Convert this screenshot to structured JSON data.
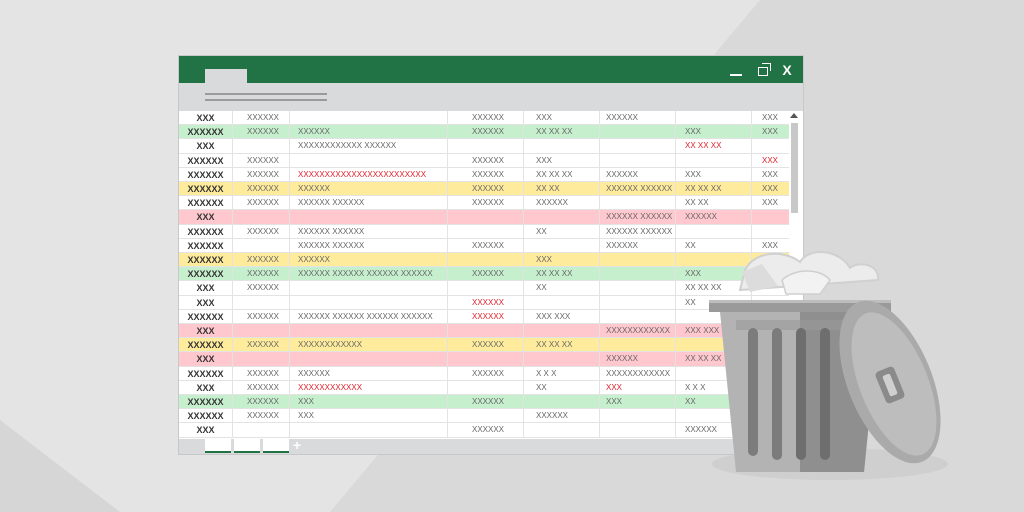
{
  "window": {
    "controls": {
      "minimize": "",
      "restore": "",
      "close": "X"
    }
  },
  "grid": {
    "rows": [
      {
        "color": "white",
        "cells": [
          "XXX",
          "XXXXXX",
          "",
          "XXXXXX",
          "XXX",
          "XXXXXX",
          "",
          "XXX"
        ],
        "red": []
      },
      {
        "color": "green",
        "cells": [
          "XXXXXX",
          "XXXXXX",
          "XXXXXX",
          "XXXXXX",
          "XX XX XX",
          "",
          "XXX",
          "XXX"
        ],
        "red": []
      },
      {
        "color": "white",
        "cells": [
          "XXX",
          "",
          "XXXXXXXXXXXX XXXXXX",
          "",
          "",
          "",
          "XX XX XX",
          ""
        ],
        "red": [
          6
        ]
      },
      {
        "color": "white",
        "cells": [
          "XXXXXX",
          "XXXXXX",
          "",
          "XXXXXX",
          "XXX",
          "",
          "",
          "XXX"
        ],
        "red": [
          7
        ]
      },
      {
        "color": "white",
        "cells": [
          "XXXXXX",
          "XXXXXX",
          "XXXXXXXXXXXXXXXXXXXXXXXX",
          "XXXXXX",
          "XX XX XX",
          "XXXXXX",
          "XXX",
          "XXX"
        ],
        "red": [
          2
        ]
      },
      {
        "color": "yellow",
        "cells": [
          "XXXXXX",
          "XXXXXX",
          "XXXXXX",
          "XXXXXX",
          "XX XX",
          "XXXXXX XXXXXX",
          "XX XX XX",
          "XXX"
        ],
        "red": []
      },
      {
        "color": "white",
        "cells": [
          "XXXXXX",
          "XXXXXX",
          "XXXXXX XXXXXX",
          "XXXXXX",
          "XXXXXX",
          "",
          "XX XX",
          "XXX"
        ],
        "red": []
      },
      {
        "color": "pink",
        "cells": [
          "XXX",
          "",
          "",
          "",
          "",
          "XXXXXX XXXXXX",
          "XXXXXX",
          ""
        ],
        "red": []
      },
      {
        "color": "white",
        "cells": [
          "XXXXXX",
          "XXXXXX",
          "XXXXXX XXXXXX",
          "",
          "XX",
          "XXXXXX XXXXXX",
          "",
          ""
        ],
        "red": []
      },
      {
        "color": "white",
        "cells": [
          "XXXXXX",
          "",
          "XXXXXX XXXXXX",
          "XXXXXX",
          "",
          "XXXXXX",
          "XX",
          "XXX"
        ],
        "red": []
      },
      {
        "color": "yellow",
        "cells": [
          "XXXXXX",
          "XXXXXX",
          "XXXXXX",
          "",
          "XXX",
          "",
          "",
          "XXX"
        ],
        "red": []
      },
      {
        "color": "green",
        "cells": [
          "XXXXXX",
          "XXXXXX",
          "XXXXXX XXXXXX XXXXXX XXXXXX",
          "XXXXXX",
          "XX XX XX",
          "",
          "XXX",
          "XX"
        ],
        "red": []
      },
      {
        "color": "white",
        "cells": [
          "XXX",
          "XXXXXX",
          "",
          "",
          "XX",
          "",
          "XX XX XX",
          ""
        ],
        "red": []
      },
      {
        "color": "white",
        "cells": [
          "XXX",
          "",
          "",
          "XXXXXX",
          "",
          "",
          "XX",
          ""
        ],
        "red": [
          3
        ]
      },
      {
        "color": "white",
        "cells": [
          "XXXXXX",
          "XXXXXX",
          "XXXXXX XXXXXX XXXXXX XXXXXX",
          "XXXXXX",
          "XXX XXX",
          "",
          "",
          ""
        ],
        "red": [
          3
        ]
      },
      {
        "color": "pink",
        "cells": [
          "XXX",
          "",
          "",
          "",
          "",
          "XXXXXXXXXXXX",
          "XXX XXX",
          ""
        ],
        "red": []
      },
      {
        "color": "yellow",
        "cells": [
          "XXXXXX",
          "XXXXXX",
          "XXXXXXXXXXXX",
          "XXXXXX",
          "XX XX XX",
          "",
          "",
          ""
        ],
        "red": []
      },
      {
        "color": "pink",
        "cells": [
          "XXX",
          "",
          "",
          "",
          "",
          "XXXXXX",
          "XX XX XX",
          ""
        ],
        "red": []
      },
      {
        "color": "white",
        "cells": [
          "XXXXXX",
          "XXXXXX",
          "XXXXXX",
          "XXXXXX",
          "X X X",
          "XXXXXXXXXXXX",
          "",
          ""
        ],
        "red": []
      },
      {
        "color": "white",
        "cells": [
          "XXX",
          "XXXXXX",
          "XXXXXXXXXXXX",
          "",
          "XX",
          "XXX",
          "X X X",
          ""
        ],
        "red": [
          2,
          5
        ]
      },
      {
        "color": "green",
        "cells": [
          "XXXXXX",
          "XXXXXX",
          "XXX",
          "XXXXXX",
          "",
          "XXX",
          "XX",
          ""
        ],
        "red": []
      },
      {
        "color": "white",
        "cells": [
          "XXXXXX",
          "XXXXXX",
          "XXX",
          "",
          "XXXXXX",
          "",
          "",
          ""
        ],
        "red": []
      },
      {
        "color": "white",
        "cells": [
          "XXX",
          "",
          "",
          "XXXXXX",
          "",
          "",
          "XXXXXX",
          ""
        ],
        "red": []
      }
    ]
  },
  "sheetbar": {
    "add_label": "+"
  },
  "colors": {
    "accent": "#217346",
    "green_row": "#c6efce",
    "yellow_row": "#ffeb9c",
    "pink_row": "#ffc7ce",
    "error_text": "#e0202a"
  },
  "icons": {
    "trash": "trash-can-icon"
  }
}
